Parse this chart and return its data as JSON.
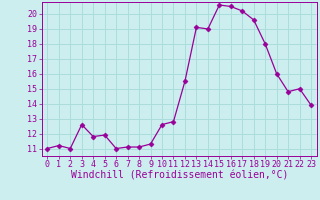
{
  "x": [
    0,
    1,
    2,
    3,
    4,
    5,
    6,
    7,
    8,
    9,
    10,
    11,
    12,
    13,
    14,
    15,
    16,
    17,
    18,
    19,
    20,
    21,
    22,
    23
  ],
  "y": [
    11.0,
    11.2,
    11.0,
    12.6,
    11.8,
    11.9,
    11.0,
    11.1,
    11.1,
    11.3,
    12.6,
    12.8,
    15.5,
    19.1,
    19.0,
    20.6,
    20.5,
    20.2,
    19.6,
    18.0,
    16.0,
    14.8,
    15.0,
    13.9
  ],
  "line_color": "#990099",
  "marker": "D",
  "marker_size": 2.5,
  "bg_color": "#cceeee",
  "grid_color": "#aadddd",
  "xlabel": "Windchill (Refroidissement éolien,°C)",
  "tick_color": "#990099",
  "ylim": [
    10.5,
    20.8
  ],
  "xlim": [
    -0.5,
    23.5
  ],
  "yticks": [
    11,
    12,
    13,
    14,
    15,
    16,
    17,
    18,
    19,
    20
  ],
  "xticks": [
    0,
    1,
    2,
    3,
    4,
    5,
    6,
    7,
    8,
    9,
    10,
    11,
    12,
    13,
    14,
    15,
    16,
    17,
    18,
    19,
    20,
    21,
    22,
    23
  ],
  "tick_fontsize": 6,
  "label_fontsize": 7
}
